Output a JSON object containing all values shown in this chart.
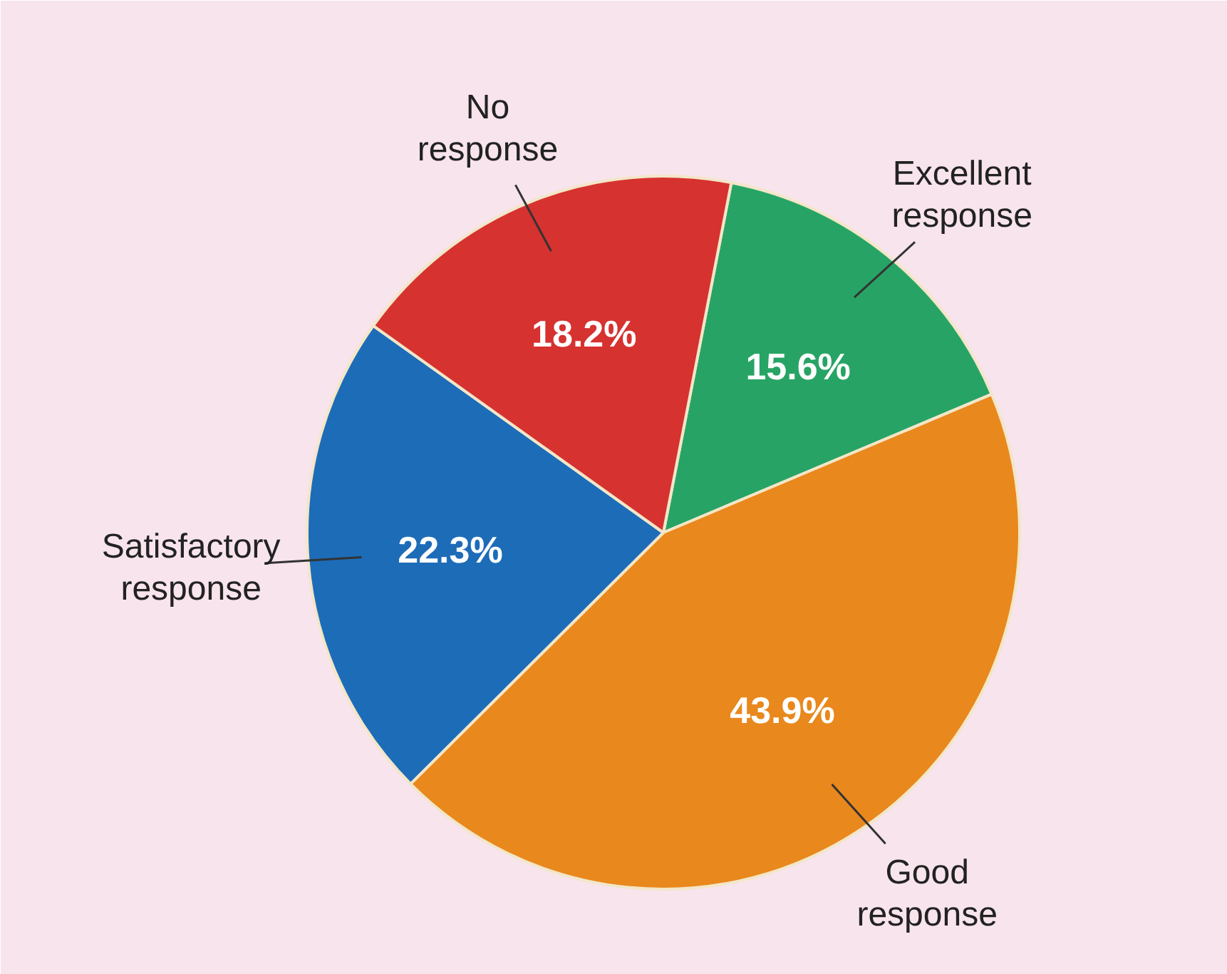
{
  "chart_data": {
    "type": "pie",
    "categories": [
      "Excellent response",
      "Good response",
      "Satisfactory response",
      "No response"
    ],
    "values": [
      15.6,
      43.9,
      22.3,
      18.2
    ],
    "colors": [
      "#27a465",
      "#e9881c",
      "#1d6cb8",
      "#d63230"
    ],
    "value_labels": [
      "15.6%",
      "43.9%",
      "22.3%",
      "18.2%"
    ]
  }
}
